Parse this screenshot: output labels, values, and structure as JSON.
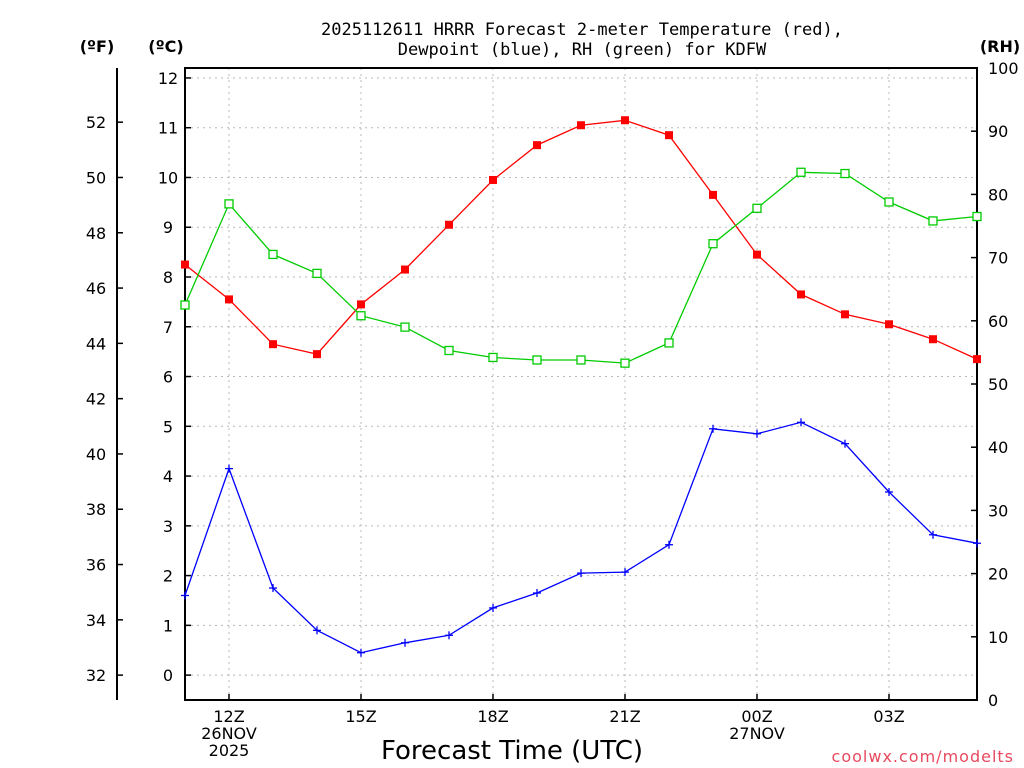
{
  "chart_data": {
    "type": "line",
    "title_line1": "2025112611 HRRR Forecast 2-meter Temperature (red),",
    "title_line2": "Dewpoint (blue), RH (green) for KDFW",
    "left_outer_axis_label": "(ºF)",
    "left_inner_axis_label": "(ºC)",
    "right_axis_label": "(RH)",
    "xlabel": "Forecast Time (UTC)",
    "watermark": "coolwx.com/modelts",
    "celsius_range": [
      -0.5,
      12.2
    ],
    "rh_range": [
      0,
      100
    ],
    "celsius_ticks": [
      "0",
      "1",
      "2",
      "3",
      "4",
      "5",
      "6",
      "7",
      "8",
      "9",
      "10",
      "11",
      "12"
    ],
    "fahrenheit_ticks": [
      "32",
      "34",
      "36",
      "38",
      "40",
      "42",
      "44",
      "46",
      "48",
      "50",
      "52"
    ],
    "rh_ticks": [
      "0",
      "10",
      "20",
      "30",
      "40",
      "50",
      "60",
      "70",
      "80",
      "90",
      "100"
    ],
    "x_hours": [
      11,
      12,
      13,
      14,
      15,
      16,
      17,
      18,
      19,
      20,
      21,
      22,
      23,
      24,
      25,
      26,
      27,
      28,
      29
    ],
    "x_ticks": [
      {
        "hour": 12,
        "lines": [
          "12Z",
          "26NOV",
          "2025"
        ]
      },
      {
        "hour": 15,
        "lines": [
          "15Z"
        ]
      },
      {
        "hour": 18,
        "lines": [
          "18Z"
        ]
      },
      {
        "hour": 21,
        "lines": [
          "21Z"
        ]
      },
      {
        "hour": 24,
        "lines": [
          "00Z",
          "27NOV"
        ]
      },
      {
        "hour": 27,
        "lines": [
          "03Z"
        ]
      }
    ],
    "series": [
      {
        "name": "Temperature (°C)",
        "axis": "celsius",
        "color": "#ff0000",
        "marker": "filled-square",
        "values": [
          8.25,
          7.55,
          6.65,
          6.45,
          7.45,
          8.15,
          9.05,
          9.95,
          10.65,
          11.05,
          11.15,
          10.85,
          9.65,
          8.45,
          7.65,
          7.25,
          7.05,
          6.75,
          6.35
        ]
      },
      {
        "name": "Dewpoint (°C)",
        "axis": "celsius",
        "color": "#0000ff",
        "marker": "plus",
        "values": [
          1.6,
          4.15,
          1.75,
          0.9,
          0.45,
          0.65,
          0.8,
          1.35,
          1.65,
          2.05,
          2.07,
          2.62,
          4.95,
          4.85,
          5.08,
          4.65,
          3.68,
          2.82,
          2.65
        ]
      },
      {
        "name": "RH (%)",
        "axis": "rh",
        "color": "#00cc00",
        "marker": "open-square",
        "values": [
          62.5,
          78.5,
          70.5,
          67.5,
          60.8,
          59.0,
          55.3,
          54.2,
          53.8,
          53.8,
          53.3,
          56.5,
          72.2,
          77.8,
          83.5,
          83.3,
          78.8,
          75.8,
          76.5
        ]
      }
    ]
  }
}
